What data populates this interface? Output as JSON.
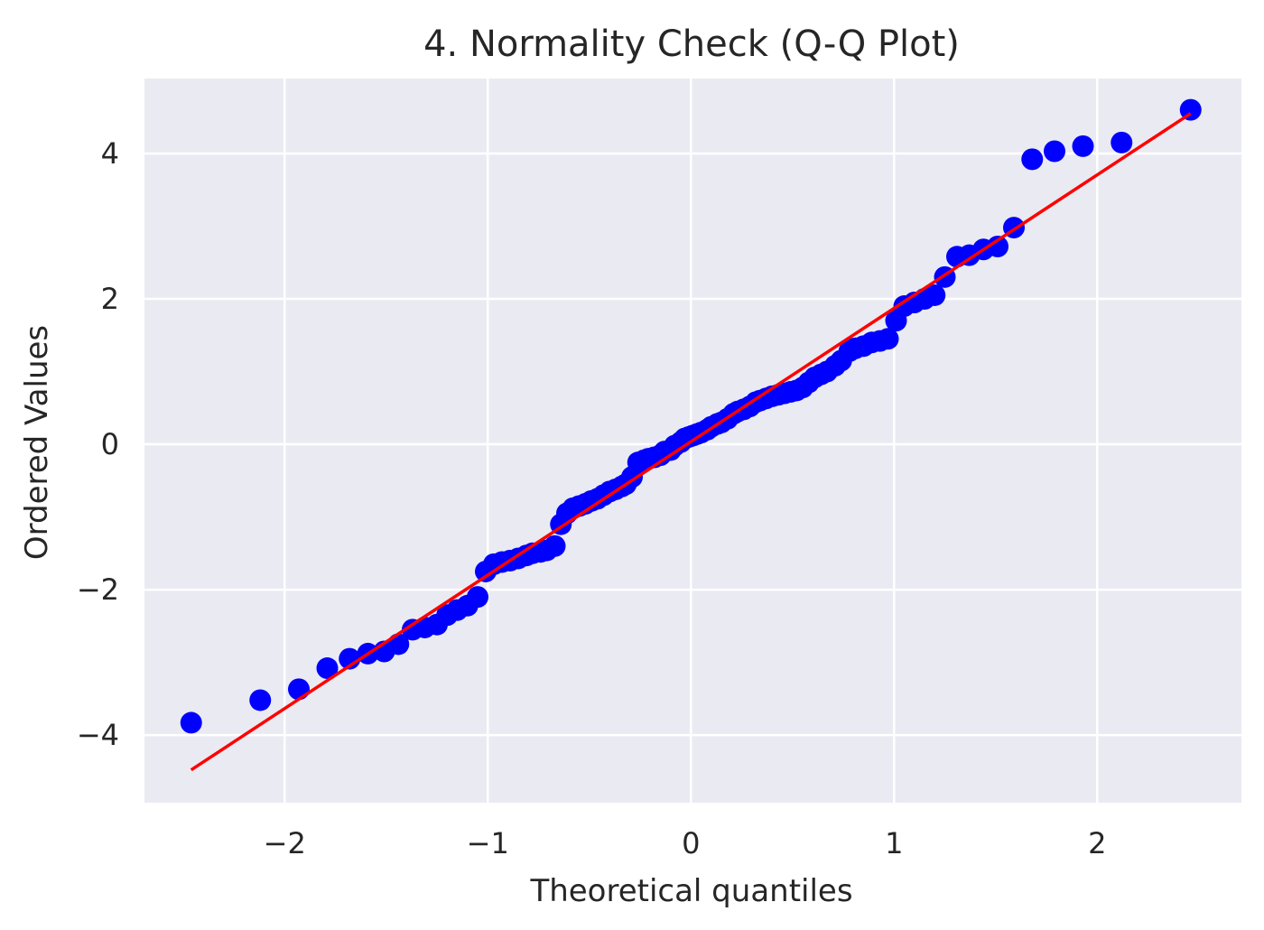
{
  "chart_data": {
    "type": "scatter",
    "title": "4. Normality Check (Q-Q Plot)",
    "xlabel": "Theoretical quantiles",
    "ylabel": "Ordered Values",
    "xlim": [
      -2.69,
      2.71
    ],
    "ylim": [
      -4.93,
      5.03
    ],
    "xticks": [
      -2,
      -1,
      0,
      1,
      2
    ],
    "xtick_labels": [
      "−2",
      "−1",
      "0",
      "1",
      "2"
    ],
    "yticks": [
      -4,
      -2,
      0,
      2,
      4
    ],
    "ytick_labels": [
      "−4",
      "−2",
      "0",
      "2",
      "4"
    ],
    "grid": true,
    "colors": {
      "background": "#eaeaf2",
      "points": "#0000ff",
      "fit_line": "#ff0000",
      "grid": "#ffffff"
    },
    "points": {
      "x": [
        -2.46,
        -2.12,
        -1.93,
        -1.79,
        -1.68,
        -1.59,
        -1.51,
        -1.44,
        -1.37,
        -1.31,
        -1.25,
        -1.2,
        -1.15,
        -1.1,
        -1.05,
        -1.01,
        -0.97,
        -0.93,
        -0.89,
        -0.85,
        -0.81,
        -0.78,
        -0.74,
        -0.71,
        -0.67,
        -0.64,
        -0.61,
        -0.58,
        -0.55,
        -0.52,
        -0.49,
        -0.46,
        -0.43,
        -0.4,
        -0.37,
        -0.34,
        -0.32,
        -0.29,
        -0.26,
        -0.23,
        -0.21,
        -0.18,
        -0.15,
        -0.13,
        -0.1,
        -0.08,
        -0.05,
        -0.03,
        -0.01,
        0.01,
        0.03,
        0.05,
        0.08,
        0.1,
        0.13,
        0.15,
        0.18,
        0.21,
        0.23,
        0.26,
        0.29,
        0.32,
        0.34,
        0.37,
        0.4,
        0.43,
        0.46,
        0.49,
        0.52,
        0.55,
        0.58,
        0.61,
        0.64,
        0.67,
        0.71,
        0.74,
        0.78,
        0.81,
        0.85,
        0.89,
        0.93,
        0.97,
        1.01,
        1.05,
        1.1,
        1.15,
        1.2,
        1.25,
        1.31,
        1.37,
        1.44,
        1.51,
        1.59,
        1.68,
        1.79,
        1.93,
        2.12,
        2.46
      ],
      "y": [
        -3.83,
        -3.52,
        -3.37,
        -3.08,
        -2.95,
        -2.88,
        -2.85,
        -2.75,
        -2.55,
        -2.52,
        -2.48,
        -2.35,
        -2.28,
        -2.22,
        -2.1,
        -1.75,
        -1.65,
        -1.62,
        -1.6,
        -1.57,
        -1.53,
        -1.5,
        -1.48,
        -1.46,
        -1.4,
        -1.1,
        -0.95,
        -0.88,
        -0.85,
        -0.82,
        -0.78,
        -0.75,
        -0.7,
        -0.65,
        -0.62,
        -0.58,
        -0.55,
        -0.45,
        -0.25,
        -0.22,
        -0.2,
        -0.18,
        -0.15,
        -0.1,
        -0.08,
        -0.02,
        0.03,
        0.08,
        0.1,
        0.12,
        0.14,
        0.16,
        0.2,
        0.24,
        0.28,
        0.3,
        0.35,
        0.42,
        0.45,
        0.48,
        0.52,
        0.58,
        0.6,
        0.63,
        0.66,
        0.68,
        0.7,
        0.72,
        0.74,
        0.78,
        0.85,
        0.92,
        0.96,
        1.0,
        1.08,
        1.15,
        1.28,
        1.32,
        1.35,
        1.4,
        1.42,
        1.45,
        1.7,
        1.9,
        1.95,
        2.0,
        2.05,
        2.3,
        2.58,
        2.6,
        2.68,
        2.72,
        2.98,
        3.92,
        4.03,
        4.1,
        4.15,
        4.6
      ]
    },
    "fit_line": {
      "slope": 1.835,
      "intercept": 0.035,
      "x_range": [
        -2.46,
        2.46
      ]
    }
  }
}
